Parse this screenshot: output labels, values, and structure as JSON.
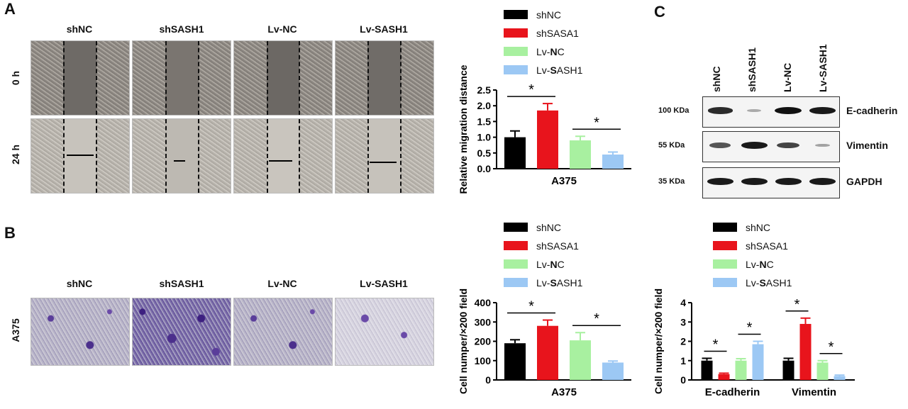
{
  "panels": {
    "A": {
      "label": "A",
      "columns": [
        "shNC",
        "shSASH1",
        "Lv-NC",
        "Lv-SASH1"
      ],
      "rows": [
        "0 h",
        "24 h"
      ]
    },
    "B": {
      "label": "B",
      "columns": [
        "shNC",
        "shSASH1",
        "Lv-NC",
        "Lv-SASH1"
      ],
      "row": "A375"
    },
    "C": {
      "label": "C",
      "lanes": [
        "shNC",
        "shSASH1",
        "Lv-NC",
        "Lv-SASH1"
      ],
      "blots": [
        {
          "marker": "100 KDa",
          "name": "E-cadherin",
          "intensity": [
            0.85,
            0.1,
            1.0,
            0.95
          ]
        },
        {
          "marker": "55 KDa",
          "name": "Vimentin",
          "intensity": [
            0.6,
            0.95,
            0.7,
            0.15
          ]
        },
        {
          "marker": "35 KDa",
          "name": "GAPDH",
          "intensity": [
            0.95,
            0.95,
            0.95,
            0.95
          ]
        }
      ]
    }
  },
  "legend": {
    "items": [
      {
        "prefix": "shNC",
        "bold": "",
        "suffix": "",
        "color": "#000000"
      },
      {
        "prefix": "shSASA1",
        "bold": "",
        "suffix": "",
        "color": "#e8141c"
      },
      {
        "prefix": "Lv-",
        "bold": "N",
        "suffix": "C",
        "color": "#a8f0a0"
      },
      {
        "prefix": "Lv-",
        "bold": "S",
        "suffix": "ASH1",
        "color": "#9cc8f4"
      }
    ]
  },
  "chart_data": [
    {
      "type": "bar",
      "categories": [
        "A375"
      ],
      "series": [
        {
          "name": "shNC",
          "values": [
            1.0
          ],
          "errors": [
            0.2
          ],
          "color": "#000000"
        },
        {
          "name": "shSASA1",
          "values": [
            1.85
          ],
          "errors": [
            0.22
          ],
          "color": "#e8141c"
        },
        {
          "name": "Lv-NC",
          "values": [
            0.9
          ],
          "errors": [
            0.13
          ],
          "color": "#a8f0a0"
        },
        {
          "name": "Lv-SASH1",
          "values": [
            0.45
          ],
          "errors": [
            0.08
          ],
          "color": "#9cc8f4"
        }
      ],
      "ylabel": "Relative migration distance",
      "xlabel": "A375",
      "ylim": [
        0,
        2.5
      ],
      "yticks": [
        "0.0",
        "0.5",
        "1.0",
        "1.5",
        "2.0",
        "2.5"
      ],
      "significance": [
        "*",
        "*"
      ]
    },
    {
      "type": "bar",
      "categories": [
        "A375"
      ],
      "series": [
        {
          "name": "shNC",
          "values": [
            190
          ],
          "errors": [
            18
          ],
          "color": "#000000"
        },
        {
          "name": "shSASA1",
          "values": [
            280
          ],
          "errors": [
            30
          ],
          "color": "#e8141c"
        },
        {
          "name": "Lv-NC",
          "values": [
            205
          ],
          "errors": [
            40
          ],
          "color": "#a8f0a0"
        },
        {
          "name": "Lv-SASH1",
          "values": [
            90
          ],
          "errors": [
            8
          ],
          "color": "#9cc8f4"
        }
      ],
      "ylabel": "Cell numper/×200 field",
      "xlabel": "A375",
      "ylim": [
        0,
        400
      ],
      "yticks": [
        "0",
        "100",
        "200",
        "300",
        "400"
      ],
      "significance": [
        "*",
        "*"
      ]
    },
    {
      "type": "bar",
      "categories": [
        "E-cadherin",
        "Vimentin"
      ],
      "series": [
        {
          "name": "shNC",
          "values": [
            1.0,
            1.0
          ],
          "errors": [
            0.12,
            0.12
          ],
          "color": "#000000"
        },
        {
          "name": "shSASA1",
          "values": [
            0.3,
            2.9
          ],
          "errors": [
            0.05,
            0.3
          ],
          "color": "#e8141c"
        },
        {
          "name": "Lv-NC",
          "values": [
            1.0,
            0.9
          ],
          "errors": [
            0.1,
            0.1
          ],
          "color": "#a8f0a0"
        },
        {
          "name": "Lv-SASH1",
          "values": [
            1.85,
            0.2
          ],
          "errors": [
            0.15,
            0.05
          ],
          "color": "#9cc8f4"
        }
      ],
      "ylabel": "Cell numper/×200 field",
      "ylim": [
        0,
        4
      ],
      "yticks": [
        "0",
        "1",
        "2",
        "3",
        "4"
      ],
      "significance": [
        "*",
        "*",
        "*",
        "*"
      ]
    }
  ]
}
